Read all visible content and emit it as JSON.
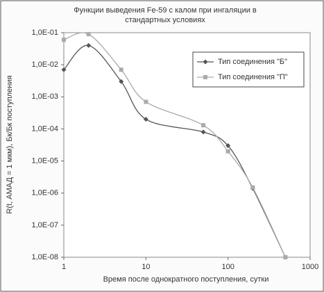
{
  "chart_data": {
    "type": "line",
    "title_lines": [
      "Функции выведения Fe-59 с калом при ингаляции в",
      "стандартных условиях"
    ],
    "x_label": "Время после однократного поступления, сутки",
    "y_label": "R(t, АМАД = 1 мкм), Бк/Бк поступления",
    "x_log": true,
    "y_log": true,
    "xlim": [
      1,
      1000
    ],
    "xticks": [
      1,
      10,
      100,
      1000
    ],
    "ylim": [
      1e-08,
      0.1
    ],
    "yticks": [
      {
        "value": 0.1,
        "label": "1,0E-01"
      },
      {
        "value": 0.01,
        "label": "1,0E-02"
      },
      {
        "value": 0.001,
        "label": "1,0E-03"
      },
      {
        "value": 0.0001,
        "label": "1,0E-04"
      },
      {
        "value": 1e-05,
        "label": "1,0E-05"
      },
      {
        "value": 1e-06,
        "label": "1,0E-06"
      },
      {
        "value": 1e-07,
        "label": "1,0E-07"
      },
      {
        "value": 1e-08,
        "label": "1,0E-08"
      }
    ],
    "legend_position": "upper right",
    "series": [
      {
        "name": "Тип соединения \"Б\"",
        "color": "#555555",
        "marker": "diamond",
        "x": [
          1,
          2,
          5,
          10,
          50,
          100,
          200,
          500
        ],
        "values": [
          0.007,
          0.04,
          0.003,
          0.0002,
          8e-05,
          3e-05,
          1.4e-06,
          1e-08
        ]
      },
      {
        "name": "Тип соединения \"П\"",
        "color": "#aaaaaa",
        "marker": "square",
        "x": [
          1,
          2,
          5,
          10,
          50,
          100,
          200,
          500
        ],
        "values": [
          0.06,
          0.09,
          0.007,
          0.0007,
          0.00013,
          2e-05,
          1.5e-06,
          1e-08
        ]
      }
    ]
  }
}
